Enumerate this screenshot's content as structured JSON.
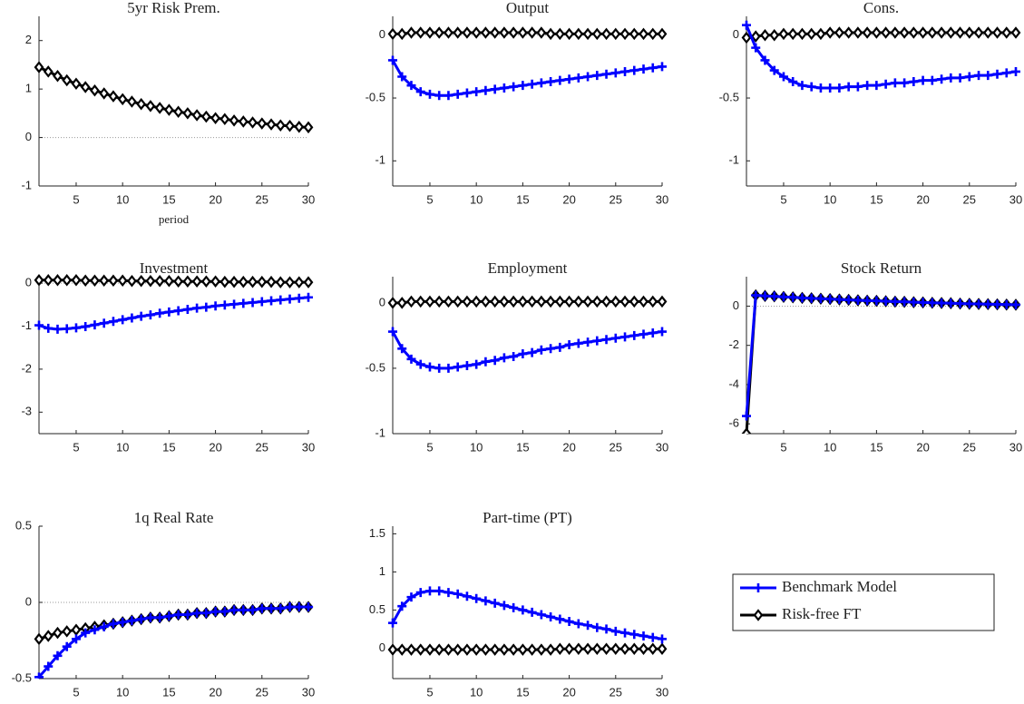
{
  "chart_data": [
    {
      "type": "line",
      "title": "5yr Risk Prem.",
      "x_label": "period",
      "xlim": [
        1,
        30
      ],
      "xticks": [
        5,
        10,
        15,
        20,
        25,
        30
      ],
      "ylim": [
        -1,
        2.5
      ],
      "yticks": [
        -1,
        0,
        1,
        2
      ],
      "x": [
        1,
        2,
        3,
        4,
        5,
        6,
        7,
        8,
        9,
        10,
        11,
        12,
        13,
        14,
        15,
        16,
        17,
        18,
        19,
        20,
        21,
        22,
        23,
        24,
        25,
        26,
        27,
        28,
        29,
        30
      ],
      "series": [
        {
          "name": "Risk-free FT",
          "color": "#000000",
          "values": [
            1.45,
            1.36,
            1.27,
            1.18,
            1.11,
            1.04,
            0.97,
            0.91,
            0.85,
            0.79,
            0.74,
            0.69,
            0.65,
            0.61,
            0.57,
            0.53,
            0.5,
            0.46,
            0.43,
            0.4,
            0.38,
            0.35,
            0.33,
            0.31,
            0.29,
            0.27,
            0.25,
            0.24,
            0.22,
            0.21
          ]
        }
      ]
    },
    {
      "type": "line",
      "title": "Output",
      "xlim": [
        1,
        30
      ],
      "xticks": [
        5,
        10,
        15,
        20,
        25,
        30
      ],
      "ylim": [
        -1.2,
        0.15
      ],
      "yticks": [
        -1,
        -0.5,
        0
      ],
      "x": [
        1,
        2,
        3,
        4,
        5,
        6,
        7,
        8,
        9,
        10,
        11,
        12,
        13,
        14,
        15,
        16,
        17,
        18,
        19,
        20,
        21,
        22,
        23,
        24,
        25,
        26,
        27,
        28,
        29,
        30
      ],
      "series": [
        {
          "name": "Benchmark Model",
          "color": "#0000ff",
          "values": [
            -0.2,
            -0.33,
            -0.4,
            -0.45,
            -0.47,
            -0.48,
            -0.48,
            -0.47,
            -0.46,
            -0.45,
            -0.44,
            -0.43,
            -0.42,
            -0.41,
            -0.4,
            -0.39,
            -0.38,
            -0.37,
            -0.36,
            -0.35,
            -0.34,
            -0.33,
            -0.32,
            -0.31,
            -0.3,
            -0.29,
            -0.28,
            -0.27,
            -0.26,
            -0.25
          ]
        },
        {
          "name": "Risk-free FT",
          "color": "#000000",
          "values": [
            0.01,
            0.01,
            0.02,
            0.02,
            0.02,
            0.02,
            0.02,
            0.02,
            0.02,
            0.02,
            0.02,
            0.02,
            0.02,
            0.02,
            0.02,
            0.02,
            0.02,
            0.01,
            0.01,
            0.01,
            0.01,
            0.01,
            0.01,
            0.01,
            0.01,
            0.01,
            0.01,
            0.01,
            0.01,
            0.01
          ]
        }
      ]
    },
    {
      "type": "line",
      "title": "Cons.",
      "xlim": [
        1,
        30
      ],
      "xticks": [
        5,
        10,
        15,
        20,
        25,
        30
      ],
      "ylim": [
        -1.2,
        0.15
      ],
      "yticks": [
        -1,
        -0.5,
        0
      ],
      "x": [
        1,
        2,
        3,
        4,
        5,
        6,
        7,
        8,
        9,
        10,
        11,
        12,
        13,
        14,
        15,
        16,
        17,
        18,
        19,
        20,
        21,
        22,
        23,
        24,
        25,
        26,
        27,
        28,
        29,
        30
      ],
      "series": [
        {
          "name": "Benchmark Model",
          "color": "#0000ff",
          "values": [
            0.08,
            -0.1,
            -0.2,
            -0.28,
            -0.33,
            -0.37,
            -0.4,
            -0.41,
            -0.42,
            -0.42,
            -0.42,
            -0.41,
            -0.41,
            -0.4,
            -0.4,
            -0.39,
            -0.38,
            -0.38,
            -0.37,
            -0.36,
            -0.36,
            -0.35,
            -0.34,
            -0.34,
            -0.33,
            -0.32,
            -0.32,
            -0.31,
            -0.3,
            -0.29
          ]
        },
        {
          "name": "Risk-free FT",
          "color": "#000000",
          "values": [
            -0.02,
            -0.01,
            0,
            0,
            0.01,
            0.01,
            0.01,
            0.01,
            0.01,
            0.02,
            0.02,
            0.02,
            0.02,
            0.02,
            0.02,
            0.02,
            0.02,
            0.02,
            0.02,
            0.02,
            0.02,
            0.02,
            0.02,
            0.02,
            0.02,
            0.02,
            0.02,
            0.02,
            0.02,
            0.02
          ]
        }
      ]
    },
    {
      "type": "line",
      "title": "Investment",
      "xlim": [
        1,
        30
      ],
      "xticks": [
        5,
        10,
        15,
        20,
        25,
        30
      ],
      "ylim": [
        -3.5,
        0.15
      ],
      "yticks": [
        -3,
        -2,
        -1,
        0
      ],
      "x": [
        1,
        2,
        3,
        4,
        5,
        6,
        7,
        8,
        9,
        10,
        11,
        12,
        13,
        14,
        15,
        16,
        17,
        18,
        19,
        20,
        21,
        22,
        23,
        24,
        25,
        26,
        27,
        28,
        29,
        30
      ],
      "series": [
        {
          "name": "Benchmark Model",
          "color": "#0000ff",
          "values": [
            -0.98,
            -1.05,
            -1.07,
            -1.06,
            -1.04,
            -1.01,
            -0.97,
            -0.93,
            -0.89,
            -0.85,
            -0.81,
            -0.77,
            -0.74,
            -0.7,
            -0.67,
            -0.64,
            -0.61,
            -0.58,
            -0.56,
            -0.53,
            -0.51,
            -0.49,
            -0.47,
            -0.45,
            -0.43,
            -0.41,
            -0.39,
            -0.37,
            -0.35,
            -0.33
          ]
        },
        {
          "name": "Risk-free FT",
          "color": "#000000",
          "values": [
            0.07,
            0.07,
            0.07,
            0.07,
            0.07,
            0.06,
            0.06,
            0.06,
            0.06,
            0.06,
            0.05,
            0.05,
            0.05,
            0.05,
            0.05,
            0.04,
            0.04,
            0.04,
            0.04,
            0.04,
            0.03,
            0.03,
            0.03,
            0.03,
            0.03,
            0.03,
            0.02,
            0.02,
            0.02,
            0.02
          ]
        }
      ]
    },
    {
      "type": "line",
      "title": "Employment",
      "xlim": [
        1,
        30
      ],
      "xticks": [
        5,
        10,
        15,
        20,
        25,
        30
      ],
      "ylim": [
        -1,
        0.2
      ],
      "yticks": [
        -1,
        -0.5,
        0
      ],
      "x": [
        1,
        2,
        3,
        4,
        5,
        6,
        7,
        8,
        9,
        10,
        11,
        12,
        13,
        14,
        15,
        16,
        17,
        18,
        19,
        20,
        21,
        22,
        23,
        24,
        25,
        26,
        27,
        28,
        29,
        30
      ],
      "series": [
        {
          "name": "Benchmark Model",
          "color": "#0000ff",
          "values": [
            -0.22,
            -0.35,
            -0.43,
            -0.47,
            -0.49,
            -0.5,
            -0.5,
            -0.49,
            -0.48,
            -0.47,
            -0.45,
            -0.44,
            -0.42,
            -0.41,
            -0.39,
            -0.38,
            -0.36,
            -0.35,
            -0.34,
            -0.32,
            -0.31,
            -0.3,
            -0.29,
            -0.28,
            -0.27,
            -0.26,
            -0.25,
            -0.24,
            -0.23,
            -0.22
          ]
        },
        {
          "name": "Risk-free FT",
          "color": "#000000",
          "values": [
            0,
            0,
            0.01,
            0.01,
            0.01,
            0.01,
            0.01,
            0.01,
            0.01,
            0.01,
            0.01,
            0.01,
            0.01,
            0.01,
            0.01,
            0.01,
            0.01,
            0.01,
            0.01,
            0.01,
            0.01,
            0.01,
            0.01,
            0.01,
            0.01,
            0.01,
            0.01,
            0.01,
            0.01,
            0.01
          ]
        }
      ]
    },
    {
      "type": "line",
      "title": "Stock Return",
      "xlim": [
        1,
        30
      ],
      "xticks": [
        5,
        10,
        15,
        20,
        25,
        30
      ],
      "ylim": [
        -6.5,
        1.5
      ],
      "yticks": [
        -6,
        -4,
        -2,
        0
      ],
      "x": [
        1,
        2,
        3,
        4,
        5,
        6,
        7,
        8,
        9,
        10,
        11,
        12,
        13,
        14,
        15,
        16,
        17,
        18,
        19,
        20,
        21,
        22,
        23,
        24,
        25,
        26,
        27,
        28,
        29,
        30
      ],
      "series": [
        {
          "name": "Benchmark Model",
          "color": "#0000ff",
          "values": [
            -5.6,
            0.55,
            0.52,
            0.5,
            0.47,
            0.45,
            0.42,
            0.4,
            0.38,
            0.36,
            0.34,
            0.32,
            0.3,
            0.28,
            0.27,
            0.25,
            0.23,
            0.22,
            0.2,
            0.19,
            0.17,
            0.16,
            0.15,
            0.13,
            0.12,
            0.11,
            0.1,
            0.09,
            0.08,
            0.07
          ]
        },
        {
          "name": "Risk-free FT",
          "color": "#000000",
          "values": [
            -6.5,
            0.55,
            0.52,
            0.5,
            0.47,
            0.45,
            0.42,
            0.4,
            0.38,
            0.36,
            0.34,
            0.32,
            0.3,
            0.28,
            0.27,
            0.25,
            0.23,
            0.22,
            0.2,
            0.19,
            0.17,
            0.16,
            0.15,
            0.13,
            0.12,
            0.11,
            0.1,
            0.09,
            0.08,
            0.07
          ]
        }
      ]
    },
    {
      "type": "line",
      "title": "1q Real Rate",
      "xlim": [
        1,
        30
      ],
      "xticks": [
        5,
        10,
        15,
        20,
        25,
        30
      ],
      "ylim": [
        -0.5,
        0.5
      ],
      "yticks": [
        -0.5,
        0,
        0.5
      ],
      "x": [
        1,
        2,
        3,
        4,
        5,
        6,
        7,
        8,
        9,
        10,
        11,
        12,
        13,
        14,
        15,
        16,
        17,
        18,
        19,
        20,
        21,
        22,
        23,
        24,
        25,
        26,
        27,
        28,
        29,
        30
      ],
      "series": [
        {
          "name": "Benchmark Model",
          "color": "#0000ff",
          "values": [
            -0.49,
            -0.42,
            -0.35,
            -0.29,
            -0.24,
            -0.2,
            -0.18,
            -0.16,
            -0.14,
            -0.13,
            -0.12,
            -0.11,
            -0.1,
            -0.1,
            -0.09,
            -0.08,
            -0.08,
            -0.07,
            -0.07,
            -0.06,
            -0.06,
            -0.05,
            -0.05,
            -0.05,
            -0.04,
            -0.04,
            -0.04,
            -0.03,
            -0.03,
            -0.03
          ]
        },
        {
          "name": "Risk-free FT",
          "color": "#000000",
          "values": [
            -0.24,
            -0.22,
            -0.2,
            -0.19,
            -0.18,
            -0.17,
            -0.16,
            -0.15,
            -0.14,
            -0.13,
            -0.12,
            -0.11,
            -0.1,
            -0.1,
            -0.09,
            -0.08,
            -0.08,
            -0.07,
            -0.07,
            -0.06,
            -0.06,
            -0.05,
            -0.05,
            -0.05,
            -0.04,
            -0.04,
            -0.04,
            -0.03,
            -0.03,
            -0.03
          ]
        }
      ]
    },
    {
      "type": "line",
      "title": "Part-time (PT)",
      "xlim": [
        1,
        30
      ],
      "xticks": [
        5,
        10,
        15,
        20,
        25,
        30
      ],
      "ylim": [
        -0.4,
        1.6
      ],
      "yticks": [
        0,
        0.5,
        1,
        1.5
      ],
      "x": [
        1,
        2,
        3,
        4,
        5,
        6,
        7,
        8,
        9,
        10,
        11,
        12,
        13,
        14,
        15,
        16,
        17,
        18,
        19,
        20,
        21,
        22,
        23,
        24,
        25,
        26,
        27,
        28,
        29,
        30
      ],
      "series": [
        {
          "name": "Benchmark Model",
          "color": "#0000ff",
          "values": [
            0.33,
            0.55,
            0.67,
            0.73,
            0.75,
            0.75,
            0.73,
            0.71,
            0.68,
            0.65,
            0.62,
            0.59,
            0.56,
            0.53,
            0.5,
            0.47,
            0.44,
            0.41,
            0.38,
            0.35,
            0.32,
            0.3,
            0.27,
            0.25,
            0.22,
            0.2,
            0.18,
            0.16,
            0.14,
            0.12
          ]
        },
        {
          "name": "Risk-free FT",
          "color": "#000000",
          "values": [
            -0.02,
            -0.02,
            -0.02,
            -0.02,
            -0.02,
            -0.02,
            -0.02,
            -0.02,
            -0.02,
            -0.02,
            -0.02,
            -0.02,
            -0.02,
            -0.02,
            -0.02,
            -0.02,
            -0.02,
            -0.02,
            -0.01,
            -0.01,
            -0.01,
            -0.01,
            -0.01,
            -0.01,
            -0.01,
            -0.01,
            -0.01,
            -0.01,
            -0.01,
            -0.01
          ]
        }
      ]
    }
  ]
}
